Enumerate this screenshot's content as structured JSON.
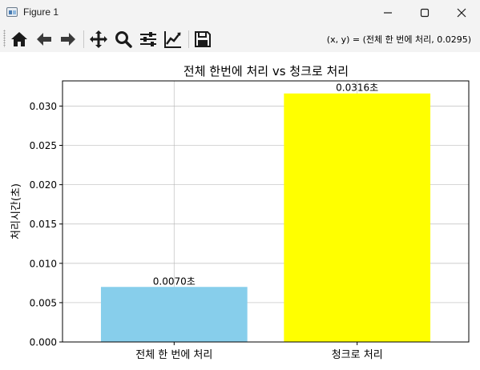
{
  "window": {
    "title": "Figure 1"
  },
  "toolbar": {
    "buttons": [
      {
        "name": "home-icon"
      },
      {
        "name": "back-arrow-icon"
      },
      {
        "name": "forward-arrow-icon"
      },
      {
        "name": "pan-move-icon"
      },
      {
        "name": "zoom-magnifier-icon"
      },
      {
        "name": "configure-subplots-icon"
      },
      {
        "name": "edit-axes-icon"
      },
      {
        "name": "save-floppy-icon"
      }
    ],
    "coordinates": "(x, y) = (전체 한 번에 처리, 0.0295)"
  },
  "chart_data": {
    "type": "bar",
    "title": "전체 한번에 처리 vs 청크로 처리",
    "xlabel": "",
    "ylabel": "처리시간(초)",
    "categories": [
      "전체 한 번에 처리",
      "청크로 처리"
    ],
    "values": [
      0.007,
      0.0316
    ],
    "value_labels": [
      "0.0070초",
      "0.0316초"
    ],
    "colors": [
      "#87ceeb",
      "#ffff00"
    ],
    "ylim": [
      0,
      0.0332
    ],
    "yticks": [
      "0.000",
      "0.005",
      "0.010",
      "0.015",
      "0.020",
      "0.025",
      "0.030"
    ],
    "grid": true
  }
}
